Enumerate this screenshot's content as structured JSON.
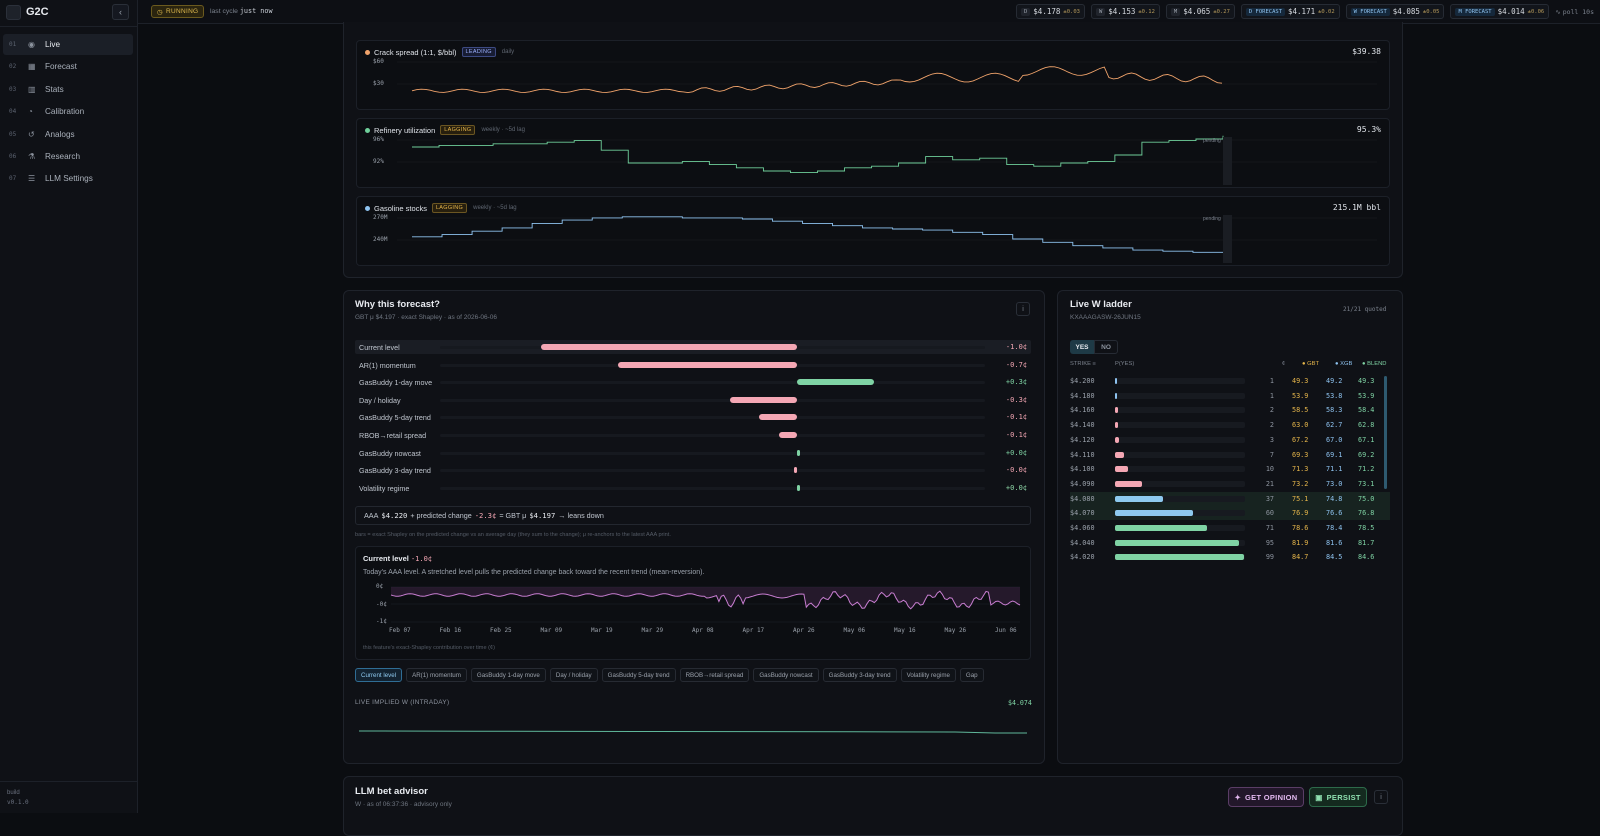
{
  "app": {
    "name": "G2C",
    "build_label": "build",
    "build_version": "v0.1.0",
    "collapse_icon": "chevron-left-icon"
  },
  "nav": [
    {
      "num": "01",
      "label": "Live",
      "icon": "broadcast-icon",
      "active": true
    },
    {
      "num": "02",
      "label": "Forecast",
      "icon": "calendar-icon"
    },
    {
      "num": "03",
      "label": "Stats",
      "icon": "bar-chart-icon"
    },
    {
      "num": "04",
      "label": "Calibration",
      "icon": "gauge-icon"
    },
    {
      "num": "05",
      "label": "Analogs",
      "icon": "history-icon"
    },
    {
      "num": "06",
      "label": "Research",
      "icon": "flask-icon"
    },
    {
      "num": "07",
      "label": "LLM Settings",
      "icon": "sliders-icon"
    }
  ],
  "topbar": {
    "status": "RUNNING",
    "last_cycle_label": "last cycle",
    "last_cycle_value": "just now",
    "chips": [
      {
        "label": "D",
        "value": "$4.178",
        "delta": "±0.03"
      },
      {
        "label": "W",
        "value": "$4.153",
        "delta": "±0.12"
      },
      {
        "label": "M",
        "value": "$4.065",
        "delta": "±0.27"
      },
      {
        "label": "D FORECAST",
        "value": "$4.171",
        "delta": "±0.02",
        "forecast": true
      },
      {
        "label": "W FORECAST",
        "value": "$4.085",
        "delta": "±0.05",
        "forecast": true
      },
      {
        "label": "M FORECAST",
        "value": "$4.014",
        "delta": "±0.06",
        "forecast": true
      }
    ],
    "poll": "poll 10s"
  },
  "indicators": [
    {
      "title": "Crack spread (1:1, $/bbl)",
      "tag": "LEADING",
      "cadence": "daily",
      "value": "$39.38",
      "color": "#f0a36b",
      "y_ticks": [
        "$60",
        "$30"
      ]
    },
    {
      "title": "Refinery utilization",
      "tag": "LAGGING",
      "cadence": "weekly · ~5d lag",
      "value": "95.3%",
      "color": "#6fcf9a",
      "y_ticks": [
        "96%",
        "92%"
      ],
      "pending": "pending"
    },
    {
      "title": "Gasoline stocks",
      "tag": "LAGGING",
      "cadence": "weekly · ~5d lag",
      "value": "215.1M bbl",
      "color": "#8ec3f0",
      "y_ticks": [
        "270M",
        "240M"
      ],
      "pending": "pending"
    }
  ],
  "why": {
    "title": "Why this forecast?",
    "subtitle": "GBT μ $4.197 · exact Shapley · as of 2026-06-06",
    "features": [
      {
        "label": "Current level",
        "value": "-1.0¢",
        "contribution": -1.0
      },
      {
        "label": "AR(1) momentum",
        "value": "-0.7¢",
        "contribution": -0.7
      },
      {
        "label": "GasBuddy 1-day move",
        "value": "+0.3¢",
        "contribution": 0.3
      },
      {
        "label": "Day / holiday",
        "value": "-0.3¢",
        "contribution": -0.26
      },
      {
        "label": "GasBuddy 5-day trend",
        "value": "-0.1¢",
        "contribution": -0.15
      },
      {
        "label": "RBOB→retail spread",
        "value": "-0.1¢",
        "contribution": -0.07
      },
      {
        "label": "GasBuddy nowcast",
        "value": "+0.0¢",
        "contribution": 0.01
      },
      {
        "label": "GasBuddy 3-day trend",
        "value": "-0.0¢",
        "contribution": -0.01
      },
      {
        "label": "Volatility regime",
        "value": "+0.0¢",
        "contribution": 0.0
      }
    ],
    "formula": {
      "aaa_label": "AAA",
      "aaa": "$4.220",
      "plus": "+ predicted change",
      "change": "-2.3¢",
      "eq": "= GBT μ",
      "mu": "$4.197",
      "tail": "→ leans down"
    },
    "note": "bars = exact Shapley on the predicted change vs an average day (they sum to the change); μ re-anchors to the latest AAA print.",
    "detail": {
      "title": "Current level",
      "value": "-1.0¢",
      "desc": "Today's AAA level. A stretched level pulls the predicted change back toward the recent trend (mean-reversion).",
      "y_ticks": [
        "0¢",
        "-0¢",
        "-1¢"
      ],
      "x_ticks": [
        "Feb 07",
        "Feb 16",
        "Feb 25",
        "Mar 09",
        "Mar 19",
        "Mar 29",
        "Apr 08",
        "Apr 17",
        "Apr 26",
        "May 06",
        "May 16",
        "May 26",
        "Jun 06"
      ],
      "foot": "this feature's exact-Shapley contribution over time (¢)"
    },
    "tabs": [
      "Current level",
      "AR(1) momentum",
      "GasBuddy 1-day move",
      "Day / holiday",
      "GasBuddy 5-day trend",
      "RBOB→retail spread",
      "GasBuddy nowcast",
      "GasBuddy 3-day trend",
      "Volatility regime",
      "Gap"
    ],
    "implied": {
      "label": "LIVE IMPLIED W (INTRADAY)",
      "value": "$4.074"
    }
  },
  "ladder": {
    "title": "Live W ladder",
    "contract": "KXAAAGASW-26JUN15",
    "quoted": "21/21 quoted",
    "yes": "YES",
    "no": "NO",
    "headers": {
      "strike": "STRIKE ≡",
      "p": "P(YES)",
      "c": "¢",
      "gbt": "GBT",
      "xgb": "XGB",
      "blend": "BLEND"
    },
    "rows": [
      {
        "strike": "$4.200",
        "c": "1",
        "gbt": "49.3",
        "xgb": "49.2",
        "blend": "49.3",
        "fill": 0.01,
        "color": "#8ec3f0"
      },
      {
        "strike": "$4.180",
        "c": "1",
        "gbt": "53.9",
        "xgb": "53.8",
        "blend": "53.9",
        "fill": 0.01,
        "color": "#8ec3f0"
      },
      {
        "strike": "$4.160",
        "c": "2",
        "gbt": "58.5",
        "xgb": "58.3",
        "blend": "58.4",
        "fill": 0.02,
        "color": "#f4a7b4"
      },
      {
        "strike": "$4.140",
        "c": "2",
        "gbt": "63.0",
        "xgb": "62.7",
        "blend": "62.8",
        "fill": 0.02,
        "color": "#f4a7b4"
      },
      {
        "strike": "$4.120",
        "c": "3",
        "gbt": "67.2",
        "xgb": "67.0",
        "blend": "67.1",
        "fill": 0.03,
        "color": "#f4a7b4"
      },
      {
        "strike": "$4.110",
        "c": "7",
        "gbt": "69.3",
        "xgb": "69.1",
        "blend": "69.2",
        "fill": 0.07,
        "color": "#f4a7b4"
      },
      {
        "strike": "$4.100",
        "c": "10",
        "gbt": "71.3",
        "xgb": "71.1",
        "blend": "71.2",
        "fill": 0.1,
        "color": "#f4a7b4"
      },
      {
        "strike": "$4.090",
        "c": "21",
        "gbt": "73.2",
        "xgb": "73.0",
        "blend": "73.1",
        "fill": 0.21,
        "color": "#f4a7b4"
      },
      {
        "strike": "$4.080",
        "c": "37",
        "gbt": "75.1",
        "xgb": "74.8",
        "blend": "75.0",
        "fill": 0.37,
        "color": "#8ec9ef",
        "hl": true
      },
      {
        "strike": "$4.070",
        "c": "60",
        "gbt": "76.9",
        "xgb": "76.6",
        "blend": "76.8",
        "fill": 0.6,
        "color": "#8ec9ef",
        "hl": true
      },
      {
        "strike": "$4.060",
        "c": "71",
        "gbt": "78.6",
        "xgb": "78.4",
        "blend": "78.5",
        "fill": 0.71,
        "color": "#7fd3a4"
      },
      {
        "strike": "$4.040",
        "c": "95",
        "gbt": "81.9",
        "xgb": "81.6",
        "blend": "81.7",
        "fill": 0.95,
        "color": "#7fd3a4"
      },
      {
        "strike": "$4.020",
        "c": "99",
        "gbt": "84.7",
        "xgb": "84.5",
        "blend": "84.6",
        "fill": 0.99,
        "color": "#7fd3a4"
      }
    ]
  },
  "advisor": {
    "title": "LLM bet advisor",
    "subtitle": "W · as of 06:37:36 · advisory only",
    "get_opinion": "GET OPINION",
    "persist": "PERSIST"
  }
}
